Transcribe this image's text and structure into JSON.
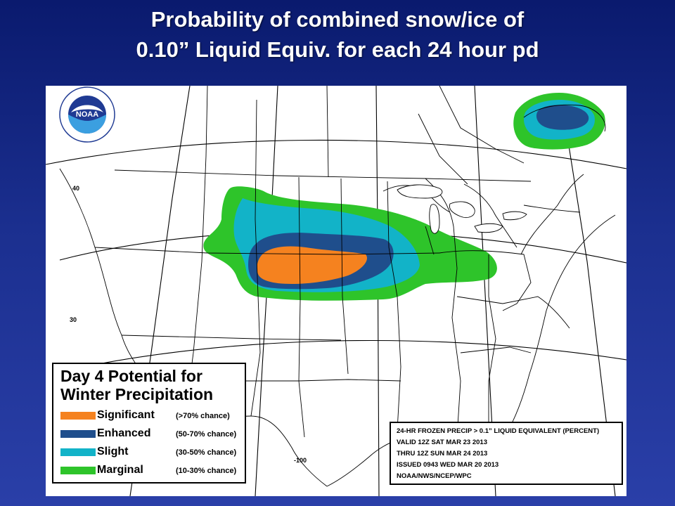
{
  "slide": {
    "title_line1": "Probability of combined snow/ice of",
    "title_line2": "0.10” Liquid Equiv. for each 24 hour pd"
  },
  "map": {
    "background_color": "#ffffff",
    "boundary_color": "#000000",
    "latitude_labels": [
      "40",
      "30"
    ],
    "longitude_labels": [
      "-100"
    ]
  },
  "legend": {
    "title_line1": "Day 4 Potential for",
    "title_line2": "Winter Precipitation",
    "categories": [
      {
        "label": "Significant",
        "range": "(>70% chance)",
        "color": "#f5821f"
      },
      {
        "label": "Enhanced",
        "range": "(50-70% chance)",
        "color": "#1f4e8c"
      },
      {
        "label": "Slight",
        "range": "(30-50% chance)",
        "color": "#12b3c8"
      },
      {
        "label": "Marginal",
        "range": "(10-30% chance)",
        "color": "#2ec42a"
      }
    ]
  },
  "info": {
    "lines": [
      "24-HR FROZEN PRECIP > 0.1” LIQUID EQUIVALENT (PERCENT)",
      "VALID 12Z SAT MAR 23 2013",
      "THRU 12Z SUN MAR 24 2013",
      "ISSUED 0943 WED MAR 20 2013",
      "NOAA/NWS/NCEP/WPC"
    ]
  },
  "logo": {
    "text": "NOAA",
    "ring_text": "NATIONAL OCEANIC AND ATMOSPHERIC ADMINISTRATION · U.S. DEPARTMENT OF COMMERCE",
    "icon": "noaa-logo-icon",
    "colors": {
      "dark_blue": "#1f3a93",
      "light_blue": "#3b9fe0"
    }
  },
  "colors": {
    "marginal": "#2ec42a",
    "slight": "#12b3c8",
    "enhanced": "#1f4e8c",
    "significant": "#f5821f"
  }
}
